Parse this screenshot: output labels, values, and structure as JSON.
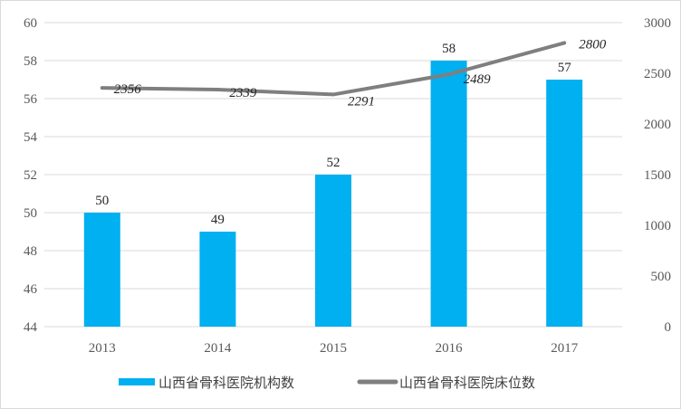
{
  "chart_data": {
    "type": "bar",
    "categories": [
      "2013",
      "2014",
      "2015",
      "2016",
      "2017"
    ],
    "series": [
      {
        "name": "山西省骨科医院机构数",
        "type": "bar",
        "axis": "left",
        "values": [
          50,
          49,
          52,
          58,
          57
        ],
        "color": "#00B0F0"
      },
      {
        "name": "山西省骨科医院床位数",
        "type": "line",
        "axis": "right",
        "values": [
          2356,
          2339,
          2291,
          2489,
          2800
        ],
        "color": "#7F7F7F"
      }
    ],
    "left_axis": {
      "ylim": [
        44,
        60
      ],
      "ticks": [
        "44",
        "46",
        "48",
        "50",
        "52",
        "54",
        "56",
        "58",
        "60"
      ]
    },
    "right_axis": {
      "ylim": [
        0,
        3000
      ],
      "ticks": [
        "0",
        "500",
        "1000",
        "1500",
        "2000",
        "2500",
        "3000"
      ]
    },
    "x_tick_labels": [
      "2013",
      "2014",
      "2015",
      "2016",
      "2017"
    ],
    "bar_labels": [
      "50",
      "49",
      "52",
      "58",
      "57"
    ],
    "line_labels": [
      "2356",
      "2339",
      "2291",
      "2489",
      "2800"
    ],
    "grid": "horizontal",
    "legend": "bottom",
    "legend_entries": [
      "山西省骨科医院机构数",
      "山西省骨科医院床位数"
    ]
  }
}
